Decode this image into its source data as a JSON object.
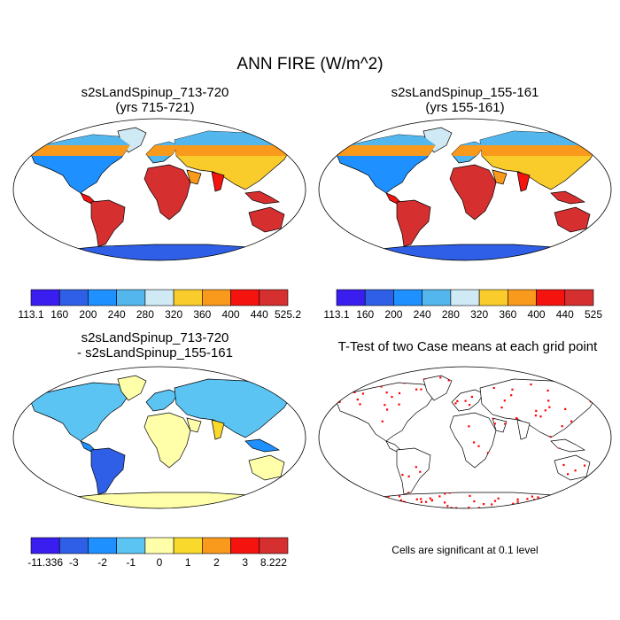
{
  "title": "ANN FIRE (W/m^2)",
  "panels": [
    {
      "id": "case1",
      "title_line1": "s2sLandSpinup_713-720",
      "title_line2": "(yrs 715-721)",
      "colorbar": {
        "labels": [
          "113.1",
          "160",
          "200",
          "240",
          "280",
          "320",
          "360",
          "400",
          "440",
          "525.2"
        ],
        "colors": [
          "#3a1ef0",
          "#2e5fe6",
          "#1e90ff",
          "#53b7ee",
          "#cfe9f5",
          "#f9cc2c",
          "#f99a1c",
          "#f5130f",
          "#d52f2f"
        ]
      }
    },
    {
      "id": "case2",
      "title_line1": "s2sLandSpinup_155-161",
      "title_line2": "(yrs 155-161)",
      "colorbar": {
        "labels": [
          "113.1",
          "160",
          "200",
          "240",
          "280",
          "320",
          "360",
          "400",
          "440",
          "525"
        ],
        "colors": [
          "#3a1ef0",
          "#2e5fe6",
          "#1e90ff",
          "#53b7ee",
          "#cfe9f5",
          "#f9cc2c",
          "#f99a1c",
          "#f5130f",
          "#d52f2f"
        ]
      }
    },
    {
      "id": "diff",
      "title_line1": "s2sLandSpinup_713-720",
      "title_line2": "- s2sLandSpinup_155-161",
      "colorbar": {
        "labels": [
          "-11.336",
          "-3",
          "-2",
          "-1",
          "0",
          "1",
          "2",
          "3",
          "8.222"
        ],
        "colors": [
          "#3a1ef0",
          "#2e5fe6",
          "#1e90ff",
          "#5cc4f3",
          "#ffffaa",
          "#f9d92c",
          "#f99a1c",
          "#f5130f",
          "#d52f2f"
        ]
      }
    },
    {
      "id": "ttest",
      "title_line1": "T-Test of two Case means at each grid point",
      "note": "Cells are significant at 0.1 level",
      "significance_color": "#ff0000"
    }
  ]
}
